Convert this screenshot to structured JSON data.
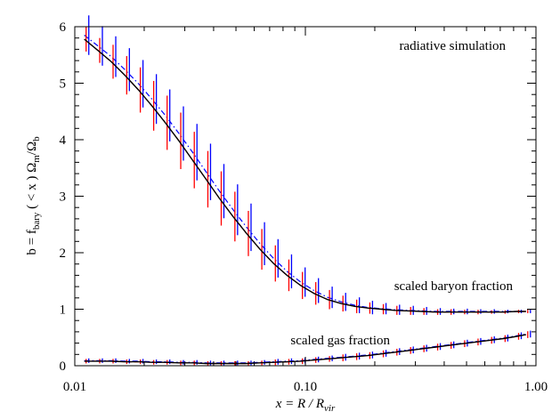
{
  "chart_data": {
    "type": "line",
    "xscale": "log",
    "xlim": [
      0.01,
      1.0
    ],
    "ylim": [
      0,
      6
    ],
    "x_ticks": [
      {
        "value": 0.01,
        "label": "0.01"
      },
      {
        "value": 0.1,
        "label": "0.10"
      },
      {
        "value": 1.0,
        "label": "1.00"
      }
    ],
    "y_ticks": [
      {
        "value": 0,
        "label": "0"
      },
      {
        "value": 1,
        "label": "1"
      },
      {
        "value": 2,
        "label": "2"
      },
      {
        "value": 3,
        "label": "3"
      },
      {
        "value": 4,
        "label": "4"
      },
      {
        "value": 5,
        "label": "5"
      },
      {
        "value": 6,
        "label": "6"
      }
    ],
    "xlabel": {
      "pre": "x = R / R",
      "sub": "vir"
    },
    "ylabel": {
      "p1": "b = f",
      "s1": "bary",
      "p2": " ( < x ) Ω",
      "s2": "m",
      "p3": "/Ω",
      "s3": "b"
    },
    "annotations": [
      {
        "text": "radiative simulation"
      },
      {
        "text": "scaled baryon fraction"
      },
      {
        "text": "scaled gas fraction"
      }
    ],
    "colors": {
      "black": "#000000",
      "red": "#ff0000",
      "blue": "#0000ff"
    },
    "groups": [
      {
        "id": "baryon",
        "x": [
          0.011,
          0.0126,
          0.0144,
          0.0165,
          0.0189,
          0.0216,
          0.0247,
          0.0283,
          0.0324,
          0.0371,
          0.0424,
          0.0486,
          0.0556,
          0.0636,
          0.0728,
          0.0833,
          0.0954,
          0.109,
          0.125,
          0.143,
          0.164,
          0.187,
          0.214,
          0.245,
          0.281,
          0.321,
          0.368,
          0.421,
          0.482,
          0.551,
          0.631,
          0.722,
          0.826,
          0.905
        ],
        "black": [
          5.78,
          5.58,
          5.38,
          5.14,
          4.88,
          4.6,
          4.3,
          3.98,
          3.64,
          3.3,
          2.96,
          2.64,
          2.34,
          2.06,
          1.81,
          1.6,
          1.42,
          1.28,
          1.17,
          1.1,
          1.05,
          1.02,
          1.0,
          0.98,
          0.97,
          0.96,
          0.95,
          0.95,
          0.95,
          0.95,
          0.95,
          0.95,
          0.96,
          0.96
        ],
        "blue": [
          5.85,
          5.66,
          5.47,
          5.24,
          4.99,
          4.72,
          4.43,
          4.11,
          3.78,
          3.43,
          3.09,
          2.76,
          2.45,
          2.16,
          1.9,
          1.67,
          1.48,
          1.33,
          1.21,
          1.13,
          1.07,
          1.03,
          1.01,
          0.99,
          0.98,
          0.97,
          0.96,
          0.96,
          0.96,
          0.96,
          0.96,
          0.96,
          0.96,
          0.96
        ],
        "red_err": [
          0.22,
          0.22,
          0.3,
          0.34,
          0.4,
          0.44,
          0.48,
          0.5,
          0.5,
          0.5,
          0.48,
          0.44,
          0.4,
          0.36,
          0.32,
          0.28,
          0.24,
          0.2,
          0.17,
          0.14,
          0.12,
          0.1,
          0.09,
          0.08,
          0.07,
          0.06,
          0.05,
          0.05,
          0.04,
          0.04,
          0.03,
          0.03,
          0.03,
          0.03
        ],
        "blue_err": [
          0.35,
          0.35,
          0.36,
          0.38,
          0.42,
          0.44,
          0.46,
          0.48,
          0.5,
          0.5,
          0.48,
          0.45,
          0.42,
          0.38,
          0.34,
          0.3,
          0.26,
          0.22,
          0.19,
          0.16,
          0.14,
          0.12,
          0.1,
          0.09,
          0.08,
          0.07,
          0.06,
          0.05,
          0.05,
          0.04,
          0.04,
          0.03,
          0.03,
          0.03
        ]
      },
      {
        "id": "gas",
        "x": [
          0.011,
          0.0126,
          0.0144,
          0.0165,
          0.0189,
          0.0216,
          0.0247,
          0.0283,
          0.0324,
          0.0371,
          0.0424,
          0.0486,
          0.0556,
          0.0636,
          0.0728,
          0.0833,
          0.0954,
          0.109,
          0.125,
          0.143,
          0.164,
          0.187,
          0.214,
          0.245,
          0.281,
          0.321,
          0.368,
          0.421,
          0.482,
          0.551,
          0.631,
          0.722,
          0.826,
          0.905
        ],
        "black": [
          0.08,
          0.08,
          0.08,
          0.07,
          0.07,
          0.06,
          0.06,
          0.05,
          0.05,
          0.04,
          0.04,
          0.04,
          0.04,
          0.05,
          0.06,
          0.07,
          0.08,
          0.1,
          0.12,
          0.14,
          0.16,
          0.18,
          0.21,
          0.24,
          0.27,
          0.3,
          0.33,
          0.36,
          0.39,
          0.42,
          0.45,
          0.48,
          0.52,
          0.55
        ],
        "blue": [
          0.09,
          0.09,
          0.09,
          0.08,
          0.08,
          0.07,
          0.07,
          0.06,
          0.06,
          0.05,
          0.05,
          0.05,
          0.05,
          0.06,
          0.07,
          0.08,
          0.09,
          0.11,
          0.13,
          0.15,
          0.17,
          0.19,
          0.22,
          0.25,
          0.28,
          0.31,
          0.34,
          0.37,
          0.4,
          0.43,
          0.46,
          0.49,
          0.53,
          0.56
        ],
        "red_err": [
          0.04,
          0.04,
          0.04,
          0.04,
          0.04,
          0.04,
          0.04,
          0.04,
          0.04,
          0.04,
          0.04,
          0.04,
          0.04,
          0.04,
          0.05,
          0.05,
          0.05,
          0.05,
          0.05,
          0.06,
          0.06,
          0.06,
          0.06,
          0.06,
          0.06,
          0.06,
          0.06,
          0.06,
          0.06,
          0.06,
          0.06,
          0.06,
          0.06,
          0.06
        ],
        "blue_err": [
          0.04,
          0.04,
          0.04,
          0.04,
          0.04,
          0.04,
          0.04,
          0.04,
          0.04,
          0.04,
          0.04,
          0.04,
          0.04,
          0.04,
          0.05,
          0.05,
          0.05,
          0.05,
          0.05,
          0.06,
          0.06,
          0.06,
          0.06,
          0.06,
          0.06,
          0.06,
          0.06,
          0.06,
          0.06,
          0.06,
          0.06,
          0.06,
          0.06,
          0.06
        ]
      }
    ]
  }
}
